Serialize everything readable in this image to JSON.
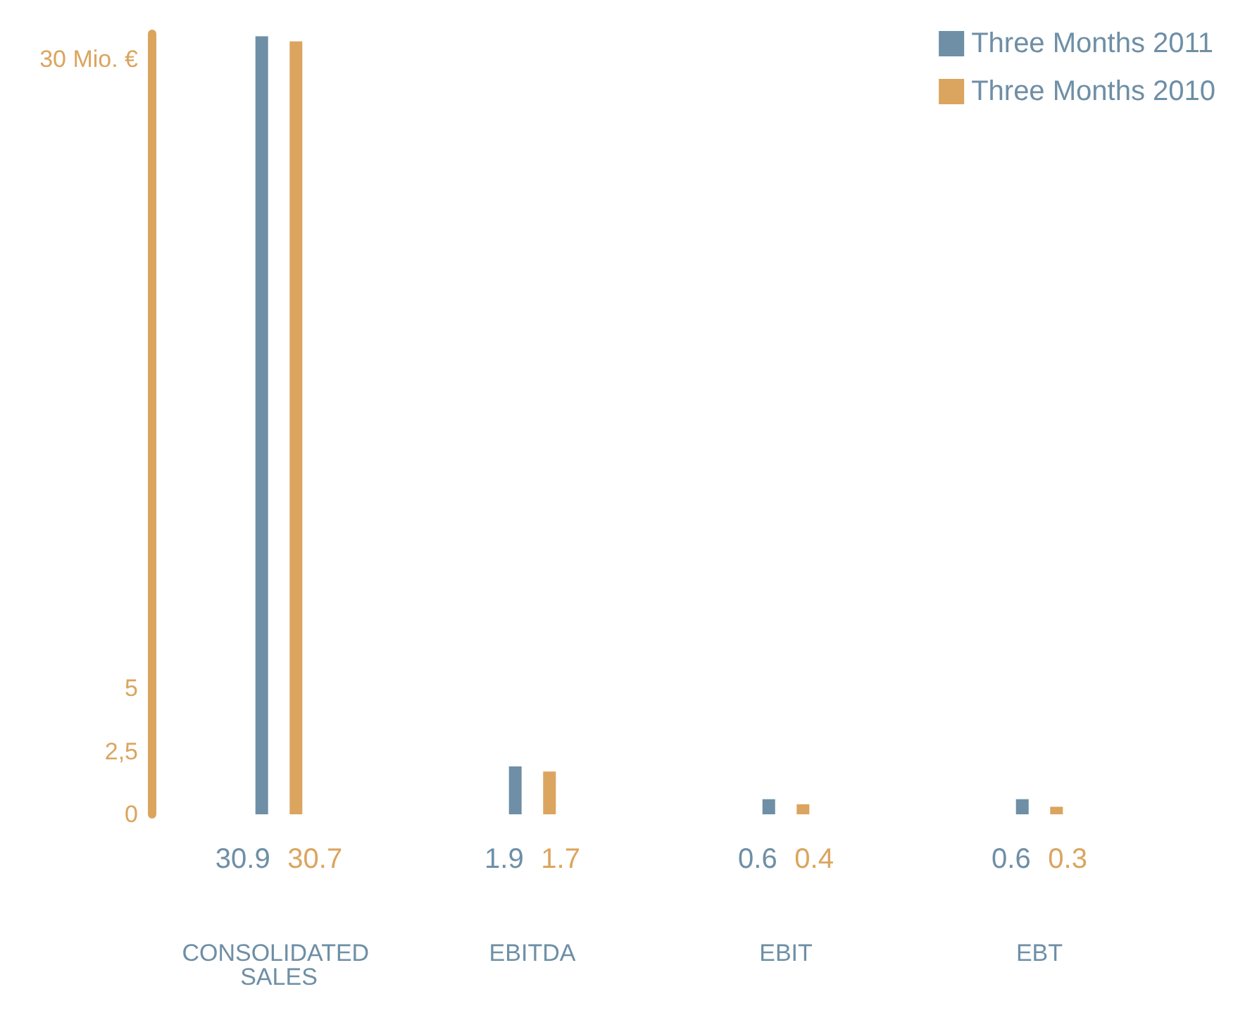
{
  "chart_data": {
    "type": "bar",
    "categories": [
      "CONSOLIDATED SALES",
      "EBITDA",
      "EBIT",
      "EBT"
    ],
    "series": [
      {
        "name": "Three Months 2011",
        "color": "#6e8fa6",
        "values": [
          30.9,
          1.9,
          0.6,
          0.6
        ]
      },
      {
        "name": "Three Months 2010",
        "color": "#dba55f",
        "values": [
          30.7,
          1.7,
          0.4,
          0.3
        ]
      }
    ],
    "ylim": [
      0,
      31
    ],
    "yticks": [
      0,
      {
        "value": 2.5,
        "label": "2,5"
      },
      5,
      {
        "value": 30,
        "label": "30 Mio. €"
      }
    ],
    "data_labels": true,
    "legend": "top right",
    "grid": false
  }
}
